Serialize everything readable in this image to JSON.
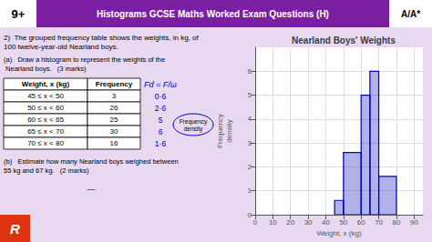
{
  "chart_data": {
    "type": "histogram",
    "title": "Nearland Boys' Weights",
    "xlabel": "Weight, x (kg)",
    "ylabel": "Frequency\ndensity",
    "bins": [
      45,
      50,
      60,
      65,
      70,
      80
    ],
    "values": [
      0.6,
      2.6,
      5.0,
      6.0,
      1.6
    ],
    "color": "#0000bb",
    "xlim": [
      0,
      95
    ],
    "ylim": [
      0,
      7
    ],
    "xticks": [
      0,
      10,
      20,
      30,
      40,
      50,
      60,
      70,
      80,
      90
    ],
    "yticks": [
      0,
      1,
      2,
      3,
      4,
      5,
      6
    ],
    "grid": true,
    "annotations": [
      "9+",
      "Histograms GCSE Maths Worked Exam Questions (H)",
      "A/A*",
      "2)  The grouped frequency table shows the weights, in kg, of 100 twelve-year-old Nearland boys.",
      "(a)   Draw a histogram to represent the weights of the Nearland boys.   (3 marks)",
      "Weight, x (kg)",
      "Frequency",
      "Fd = F/ω",
      "45 ≤ x < 50",
      "3",
      "0·6",
      "50 ≤ x < 60",
      "26",
      "2·6",
      "60 ≤ x < 65",
      "25",
      "5",
      "65 ≤ x < 70",
      "30",
      "6",
      "70 ≤ x < 80",
      "16",
      "1·6",
      "Frequency\ndensity",
      "(b)   Estimate how many Nearland boys weighed between 55 kg and 67 kg.   (2 marks)",
      "—",
      "R"
    ]
  }
}
